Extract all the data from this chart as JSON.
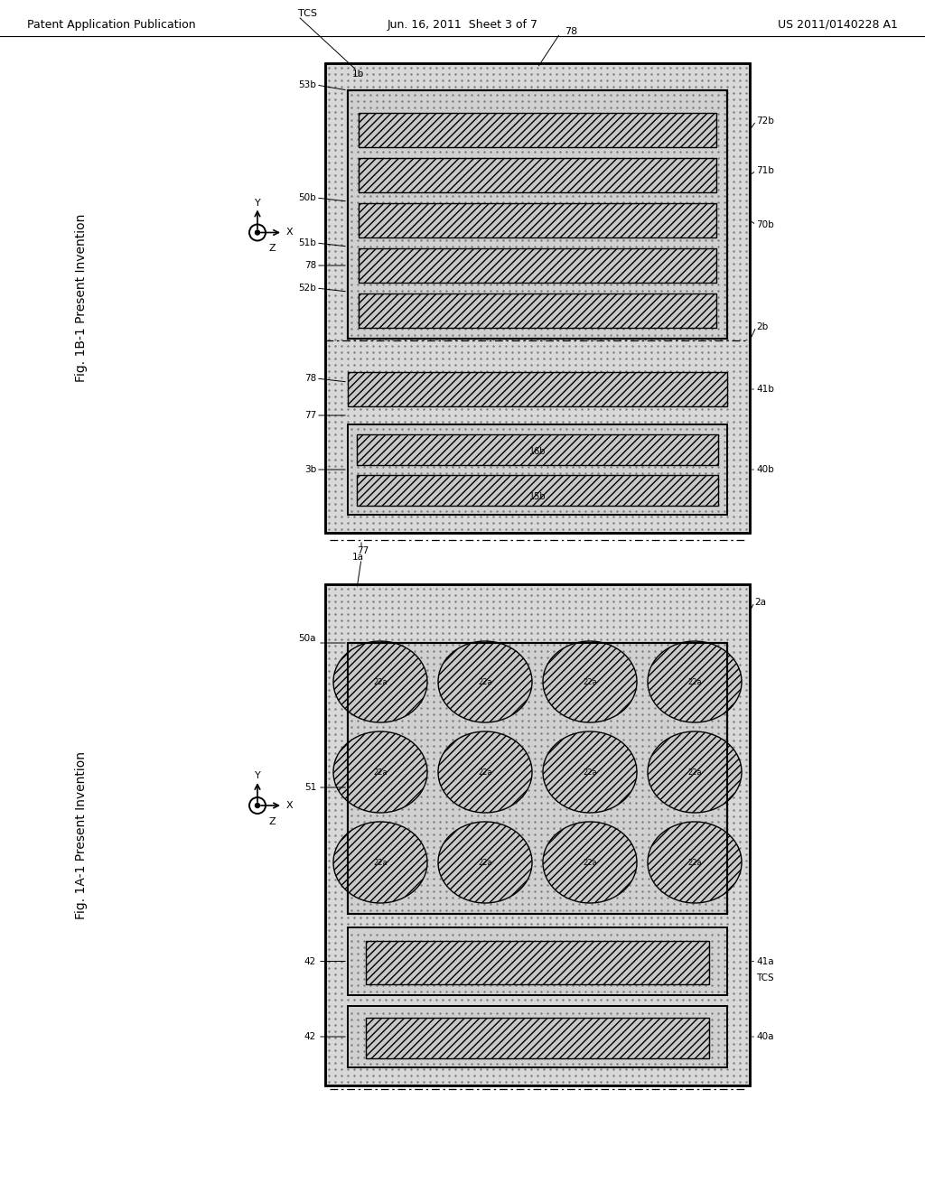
{
  "header_left": "Patent Application Publication",
  "header_center": "Jun. 16, 2011  Sheet 3 of 7",
  "header_right": "US 2011/0140228 A1",
  "fig_top_label": "Fig. 1B-1 Present Invention",
  "fig_bottom_label": "Fig. 1A-1 Present Invention",
  "bg_color": "#ffffff",
  "dot_bg": "#dcdcdc",
  "inner_dot_bg": "#d0d0d0",
  "hatch_color": "#aaaaaa"
}
